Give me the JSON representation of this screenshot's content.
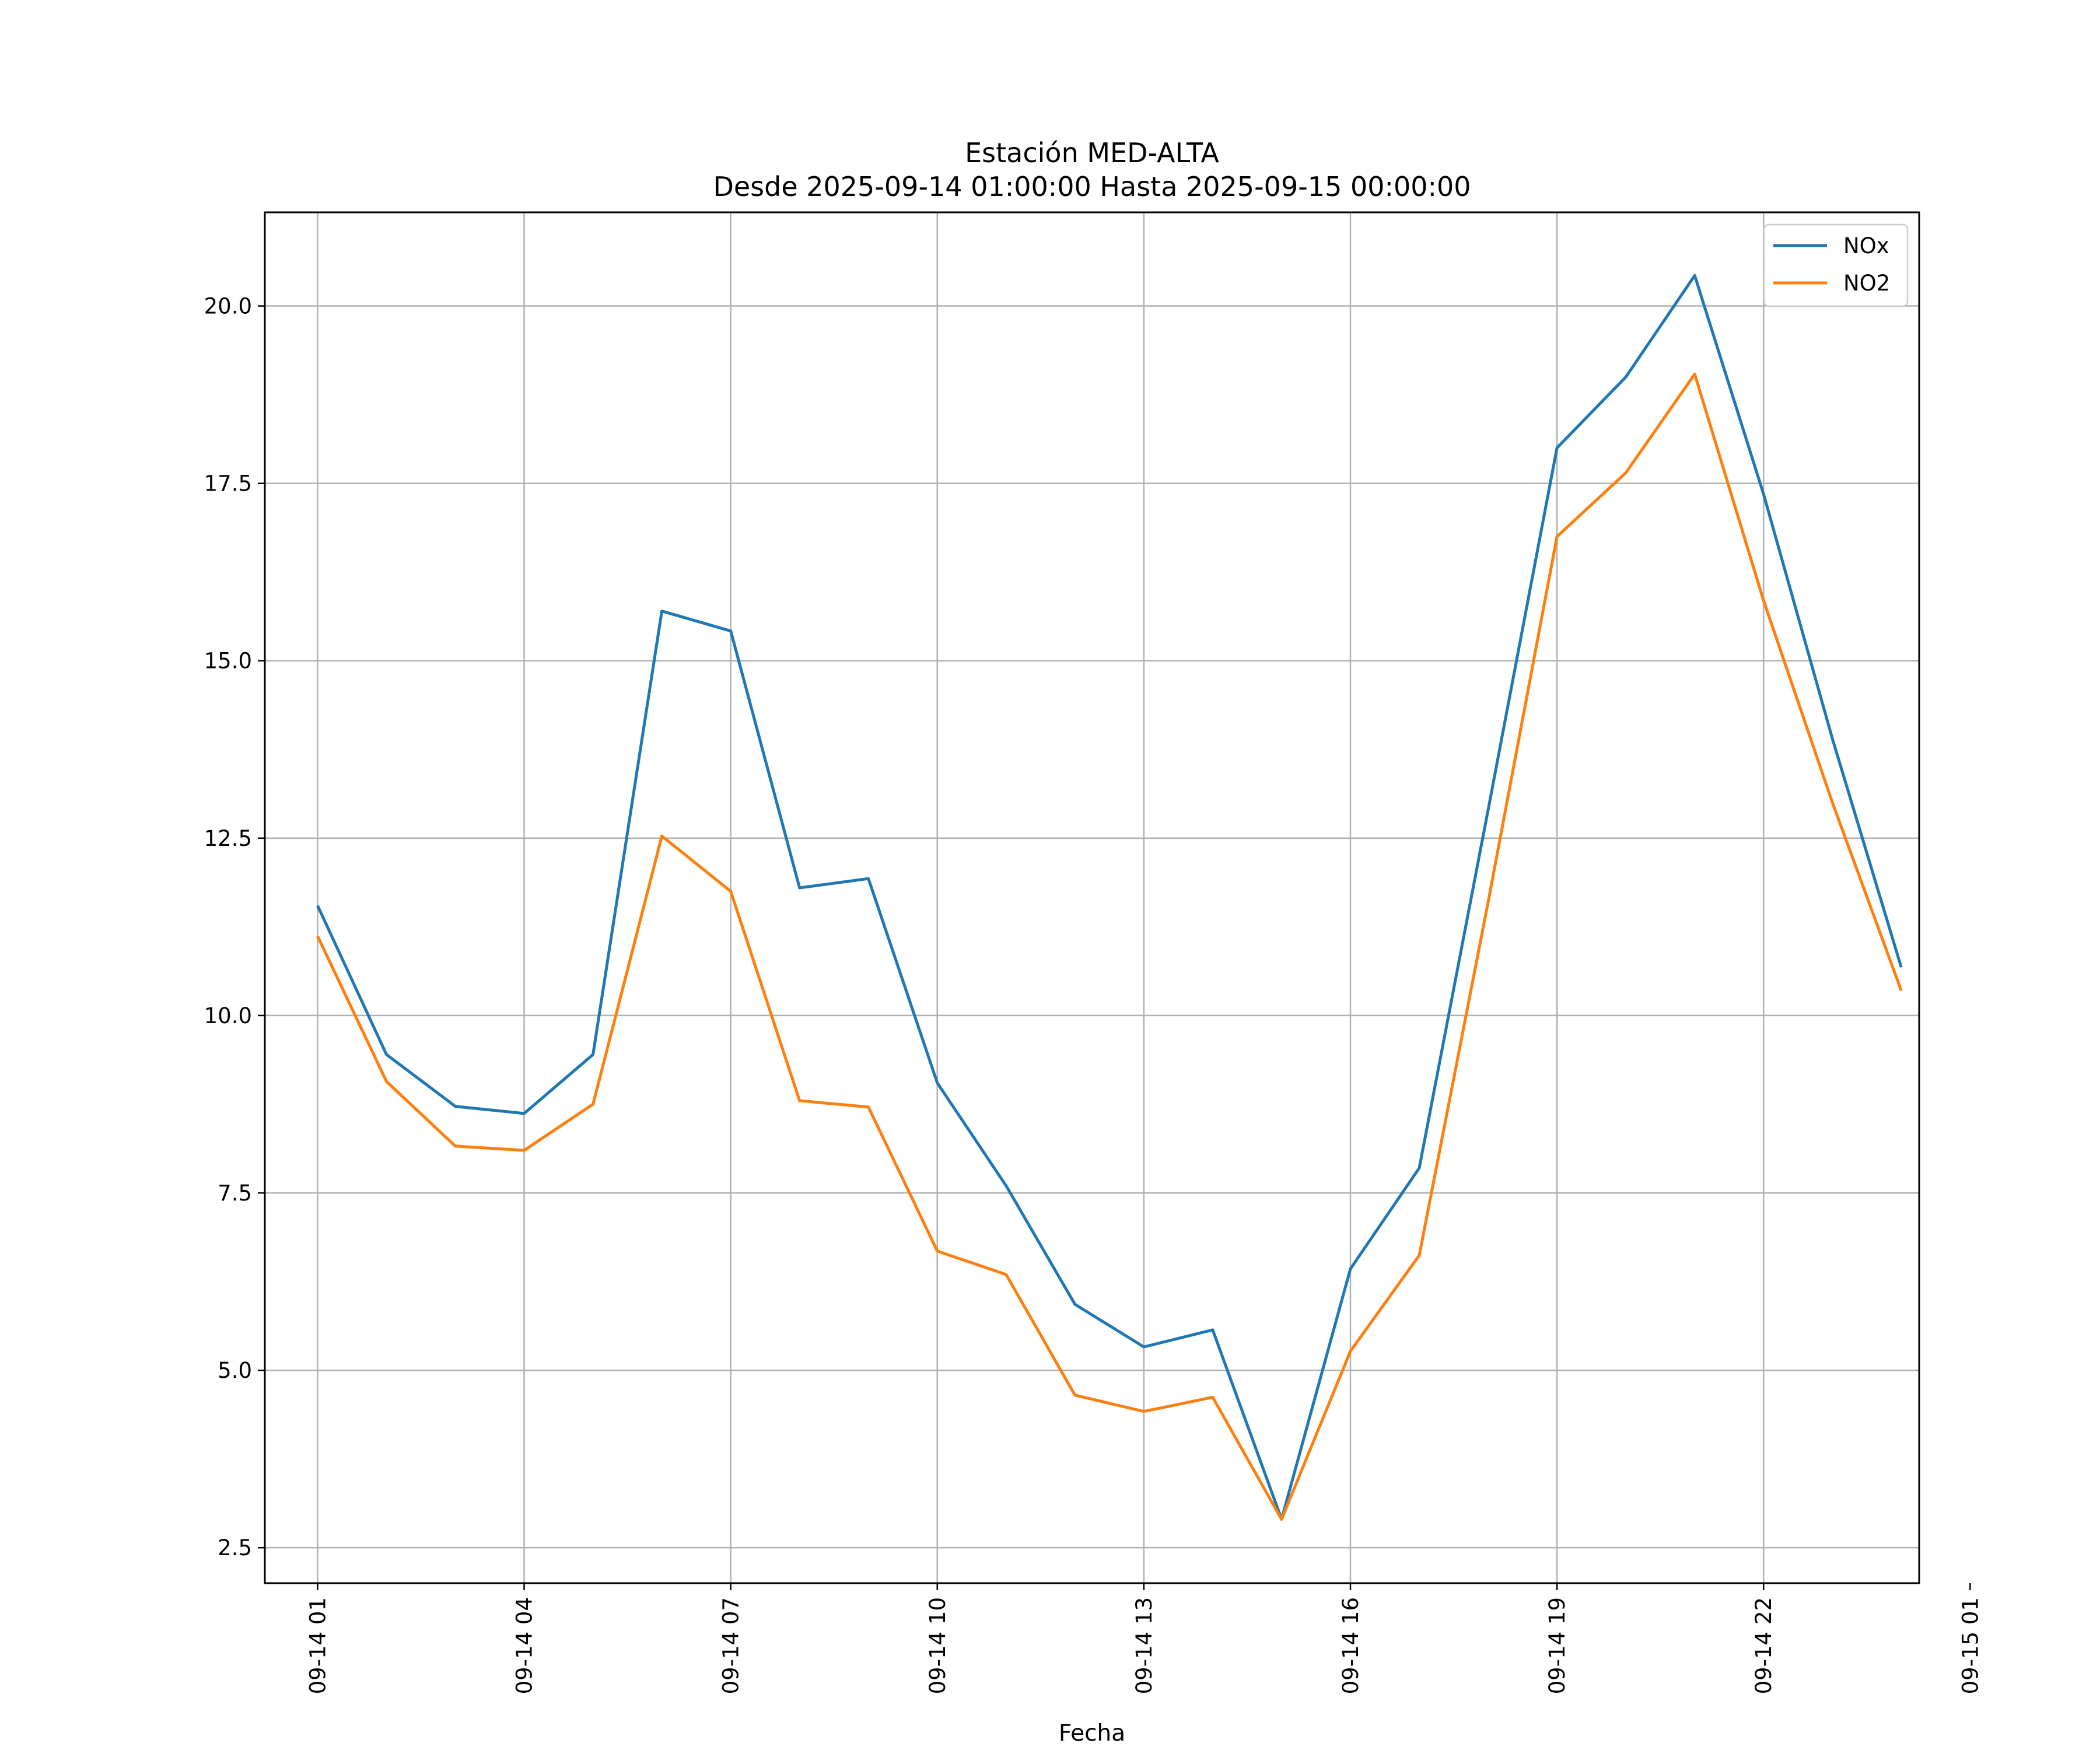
{
  "chart_data": {
    "type": "line",
    "title": "Estación MED-ALTA",
    "subtitle": "Desde 2025-09-14 01:00:00 Hasta 2025-09-15 00:00:00",
    "xlabel": "Fecha",
    "ylabel": "",
    "grid": true,
    "legend_position": "top-right",
    "x_unit": "hours since 2025-09-14 00:00",
    "xlim": [
      0.234,
      24.26
    ],
    "ylim": [
      2.0,
      21.32
    ],
    "x": [
      1,
      2,
      3,
      4,
      5,
      6,
      7,
      8,
      9,
      10,
      11,
      12,
      13,
      14,
      15,
      16,
      17,
      18,
      19,
      20,
      21,
      22,
      23,
      24
    ],
    "x_ticks": [
      {
        "x": 1,
        "label": "09-14 01"
      },
      {
        "x": 4,
        "label": "09-14 04"
      },
      {
        "x": 7,
        "label": "09-14 07"
      },
      {
        "x": 10,
        "label": "09-14 10"
      },
      {
        "x": 13,
        "label": "09-14 13"
      },
      {
        "x": 16,
        "label": "09-14 16"
      },
      {
        "x": 19,
        "label": "09-14 19"
      },
      {
        "x": 22,
        "label": "09-14 22"
      },
      {
        "x": 25,
        "label": "09-15 01"
      }
    ],
    "y_ticks": [
      {
        "y": 2.5,
        "label": "2.5"
      },
      {
        "y": 5.0,
        "label": "5.0"
      },
      {
        "y": 7.5,
        "label": "7.5"
      },
      {
        "y": 10.0,
        "label": "10.0"
      },
      {
        "y": 12.5,
        "label": "12.5"
      },
      {
        "y": 15.0,
        "label": "15.0"
      },
      {
        "y": 17.5,
        "label": "17.5"
      },
      {
        "y": 20.0,
        "label": "20.0"
      }
    ],
    "series": [
      {
        "name": "NOx",
        "color": "#1f77b4",
        "values": [
          11.55,
          9.45,
          8.72,
          8.62,
          9.45,
          15.7,
          15.42,
          11.8,
          11.93,
          9.05,
          7.6,
          5.93,
          5.33,
          5.57,
          2.9,
          6.43,
          7.85,
          12.9,
          18.0,
          19.0,
          20.43,
          17.35,
          13.9,
          10.68
        ]
      },
      {
        "name": "NO2",
        "color": "#ff7f0e",
        "values": [
          11.12,
          9.07,
          8.16,
          8.1,
          8.75,
          12.53,
          11.75,
          8.8,
          8.71,
          6.68,
          6.35,
          4.65,
          4.42,
          4.62,
          2.9,
          5.27,
          6.62,
          11.6,
          16.75,
          17.65,
          19.04,
          15.85,
          13.0,
          10.35
        ]
      }
    ]
  }
}
